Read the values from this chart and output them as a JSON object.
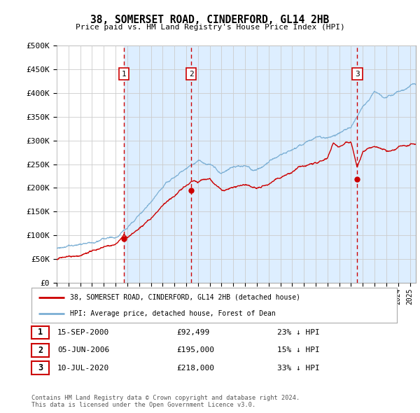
{
  "title": "38, SOMERSET ROAD, CINDERFORD, GL14 2HB",
  "subtitle": "Price paid vs. HM Land Registry's House Price Index (HPI)",
  "ylabel_ticks": [
    "£0",
    "£50K",
    "£100K",
    "£150K",
    "£200K",
    "£250K",
    "£300K",
    "£350K",
    "£400K",
    "£450K",
    "£500K"
  ],
  "ylim": [
    0,
    500000
  ],
  "xlim_start": 1995.0,
  "xlim_end": 2025.5,
  "sale_dates": [
    2000.71,
    2006.42,
    2020.52
  ],
  "sale_prices": [
    92499,
    195000,
    218000
  ],
  "sale_labels": [
    "1",
    "2",
    "3"
  ],
  "dashed_line_color": "#cc0000",
  "red_line_color": "#cc0000",
  "blue_line_color": "#7bafd4",
  "shade_color": "#ddeeff",
  "background_color": "#ffffff",
  "grid_color": "#cccccc",
  "legend_entries": [
    "38, SOMERSET ROAD, CINDERFORD, GL14 2HB (detached house)",
    "HPI: Average price, detached house, Forest of Dean"
  ],
  "table_rows": [
    {
      "num": "1",
      "date": "15-SEP-2000",
      "price": "£92,499",
      "hpi": "23% ↓ HPI"
    },
    {
      "num": "2",
      "date": "05-JUN-2006",
      "price": "£195,000",
      "hpi": "15% ↓ HPI"
    },
    {
      "num": "3",
      "date": "10-JUL-2020",
      "price": "£218,000",
      "hpi": "33% ↓ HPI"
    }
  ],
  "footnote": "Contains HM Land Registry data © Crown copyright and database right 2024.\nThis data is licensed under the Open Government Licence v3.0."
}
